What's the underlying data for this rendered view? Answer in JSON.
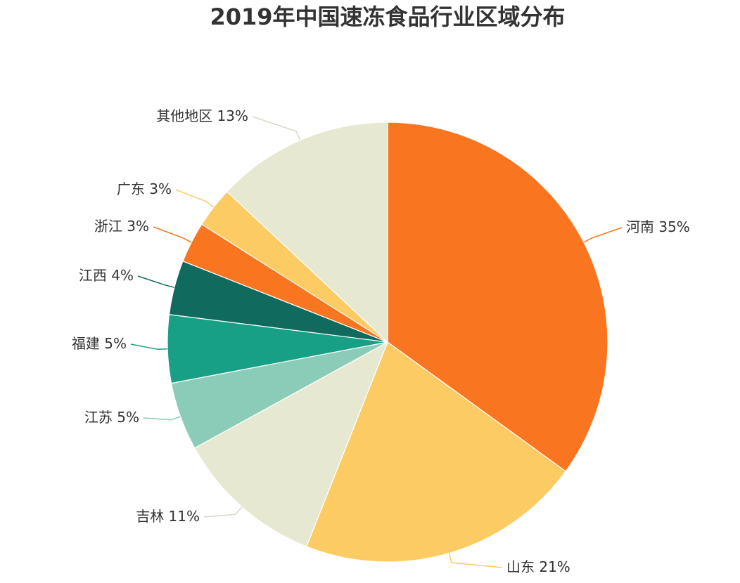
{
  "chart_data": {
    "type": "pie",
    "title": "2019年中国速冻食品行业区域分布",
    "start": "12 o'clock",
    "direction": "clockwise",
    "slices": [
      {
        "key": "henan",
        "label": "河南",
        "value": 35,
        "display": "35%",
        "color": "#fa7520",
        "label_side": "right"
      },
      {
        "key": "shandong",
        "label": "山东",
        "value": 21,
        "display": "21%",
        "color": "#fccb63",
        "label_side": "right"
      },
      {
        "key": "jilin",
        "label": "吉林",
        "value": 11,
        "display": "11%",
        "color": "#e6e8d2",
        "label_side": "left"
      },
      {
        "key": "jiangsu",
        "label": "江苏",
        "value": 5,
        "display": "5%",
        "color": "#8bccb8",
        "label_side": "left"
      },
      {
        "key": "fujian",
        "label": "福建",
        "value": 5,
        "display": "5%",
        "color": "#17a085",
        "label_side": "left"
      },
      {
        "key": "jiangxi",
        "label": "江西",
        "value": 4,
        "display": "4%",
        "color": "#116a5e",
        "label_side": "left"
      },
      {
        "key": "zhejiang",
        "label": "浙江",
        "value": 3,
        "display": "3%",
        "color": "#fa7520",
        "label_side": "left"
      },
      {
        "key": "guangdong",
        "label": "广东",
        "value": 3,
        "display": "3%",
        "color": "#fccb63",
        "label_side": "left"
      },
      {
        "key": "others",
        "label": "其他地区",
        "value": 13,
        "display": "13%",
        "color": "#e6e8d2",
        "label_side": "left"
      }
    ]
  }
}
